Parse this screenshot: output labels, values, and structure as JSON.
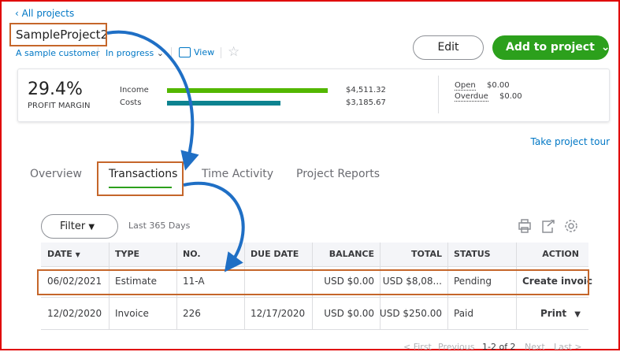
{
  "nav": {
    "back": "All projects"
  },
  "project": {
    "name": "SampleProject2",
    "customer": "A sample customer",
    "status": "In progress",
    "view": "View"
  },
  "buttons": {
    "edit": "Edit",
    "add": "Add to project"
  },
  "summary": {
    "profit_margin": "29.4%",
    "profit_label": "PROFIT MARGIN",
    "income_label": "Income",
    "income": "$4,511.32",
    "costs_label": "Costs",
    "costs": "$3,185.67",
    "open_label": "Open",
    "open": "$0.00",
    "overdue_label": "Overdue",
    "overdue": "$0.00"
  },
  "tour": "Take project tour",
  "tabs": [
    "Overview",
    "Transactions",
    "Time Activity",
    "Project Reports"
  ],
  "filter": {
    "button": "Filter",
    "range": "Last 365 Days"
  },
  "table": {
    "headers": [
      "DATE",
      "TYPE",
      "NO.",
      "DUE DATE",
      "BALANCE",
      "TOTAL",
      "STATUS",
      "ACTION"
    ],
    "rows": [
      [
        "06/02/2021",
        "Estimate",
        "11-A",
        null,
        "USD $0.00",
        "USD $8,08...",
        "Pending",
        "Create invoic"
      ],
      [
        "12/02/2020",
        "Invoice",
        "226",
        "12/17/2020",
        "USD $0.00",
        "USD $250.00",
        "Paid",
        "Print"
      ]
    ]
  },
  "pagination": [
    "First",
    "Previous",
    "1-2 of 2",
    "Next",
    "Last"
  ]
}
